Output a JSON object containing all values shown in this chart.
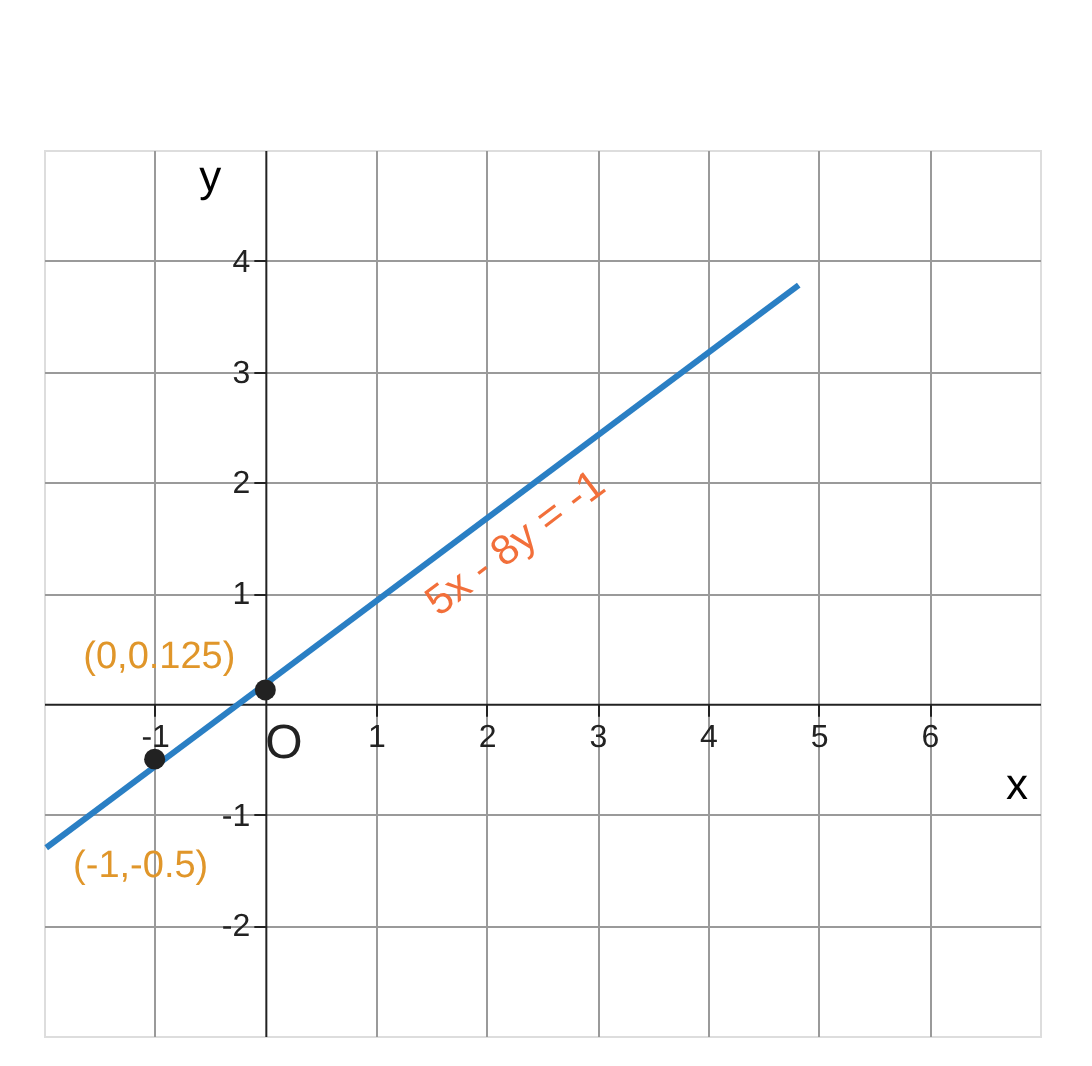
{
  "chart_data": {
    "type": "line",
    "xlabel": "x",
    "ylabel": "y",
    "xlim": [
      -2,
      7
    ],
    "ylim": [
      -3,
      5
    ],
    "xticks": [
      -1,
      1,
      2,
      3,
      4,
      5,
      6
    ],
    "yticks": [
      -2,
      -1,
      1,
      2,
      3,
      4
    ],
    "grid": true,
    "series": [
      {
        "x": [
          -1.98,
          4.82
        ],
        "values": [
          -1.3,
          3.78
        ],
        "color": "#2a7fc4",
        "marker": "none"
      },
      {
        "type": "scatter",
        "x": [
          -1,
          0
        ],
        "values": [
          -0.5,
          0.125
        ],
        "color": "#222222",
        "marker": "circle"
      }
    ],
    "annotations": [
      "5x - 8y = -1",
      {
        "text": "(0,0.125)",
        "x": 0,
        "y": 0.125
      },
      {
        "text": "(-1,-0.5)",
        "x": -1,
        "y": -0.5
      },
      "O"
    ]
  }
}
